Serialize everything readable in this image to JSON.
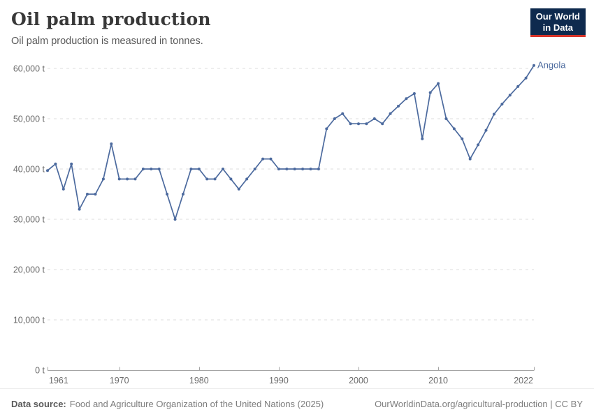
{
  "header": {
    "title": "Oil palm production",
    "subtitle": "Oil palm production is measured in tonnes.",
    "logo_line1": "Our World",
    "logo_line2": "in Data"
  },
  "footer": {
    "source_label": "Data source:",
    "source_text": "Food and Agriculture Organization of the United Nations (2025)",
    "right_text": "OurWorldinData.org/agricultural-production | CC BY"
  },
  "colors": {
    "series_blue": "#4c6a9e",
    "logo_bg": "#0e2a4e",
    "logo_red": "#d7342a",
    "grid": "#dddddd",
    "axis": "#a3a3a3",
    "tick_label": "#6b6b6b",
    "title": "#383838",
    "subtitle": "#5a5a5a"
  },
  "chart_data": {
    "type": "line",
    "title": "Oil palm production",
    "unit": "t",
    "grid": "horizontal-dashed",
    "markers": true,
    "legend": "end-of-line-label",
    "end_label": "Angola",
    "xlim": [
      1961,
      2022
    ],
    "ylim": [
      0,
      60000
    ],
    "x_ticks": [
      1961,
      1970,
      1980,
      1990,
      2000,
      2010,
      2022
    ],
    "x_tick_labels": [
      "1961",
      "1970",
      "1980",
      "1990",
      "2000",
      "2010",
      "2022"
    ],
    "y_ticks": [
      0,
      10000,
      20000,
      30000,
      40000,
      50000,
      60000
    ],
    "y_tick_labels": [
      "0 t",
      "10,000 t",
      "20,000 t",
      "30,000 t",
      "40,000 t",
      "50,000 t",
      "60,000 t"
    ],
    "series": [
      {
        "name": "Angola",
        "color": "#4c6a9e",
        "years": [
          1961,
          1962,
          1963,
          1964,
          1965,
          1966,
          1967,
          1968,
          1969,
          1970,
          1971,
          1972,
          1973,
          1974,
          1975,
          1976,
          1977,
          1978,
          1979,
          1980,
          1981,
          1982,
          1983,
          1984,
          1985,
          1986,
          1987,
          1988,
          1989,
          1990,
          1991,
          1992,
          1993,
          1994,
          1995,
          1996,
          1997,
          1998,
          1999,
          2000,
          2001,
          2002,
          2003,
          2004,
          2005,
          2006,
          2007,
          2008,
          2009,
          2010,
          2011,
          2012,
          2013,
          2014,
          2015,
          2016,
          2017,
          2018,
          2019,
          2020,
          2021,
          2022
        ],
        "values": [
          39700,
          41000,
          36000,
          41000,
          32000,
          35000,
          35000,
          38000,
          45000,
          38000,
          38000,
          38000,
          40000,
          40000,
          40000,
          35000,
          30000,
          35000,
          40000,
          40000,
          38000,
          38000,
          40000,
          38000,
          36000,
          38000,
          40000,
          42000,
          42000,
          40000,
          40000,
          40000,
          40000,
          40000,
          40000,
          48000,
          50000,
          51000,
          49000,
          49000,
          49000,
          50000,
          49000,
          51000,
          52500,
          54000,
          55000,
          46000,
          55200,
          57000,
          50000,
          48000,
          46000,
          42000,
          44800,
          47700,
          50900,
          52900,
          54700,
          56400,
          58100,
          60600
        ]
      }
    ]
  }
}
